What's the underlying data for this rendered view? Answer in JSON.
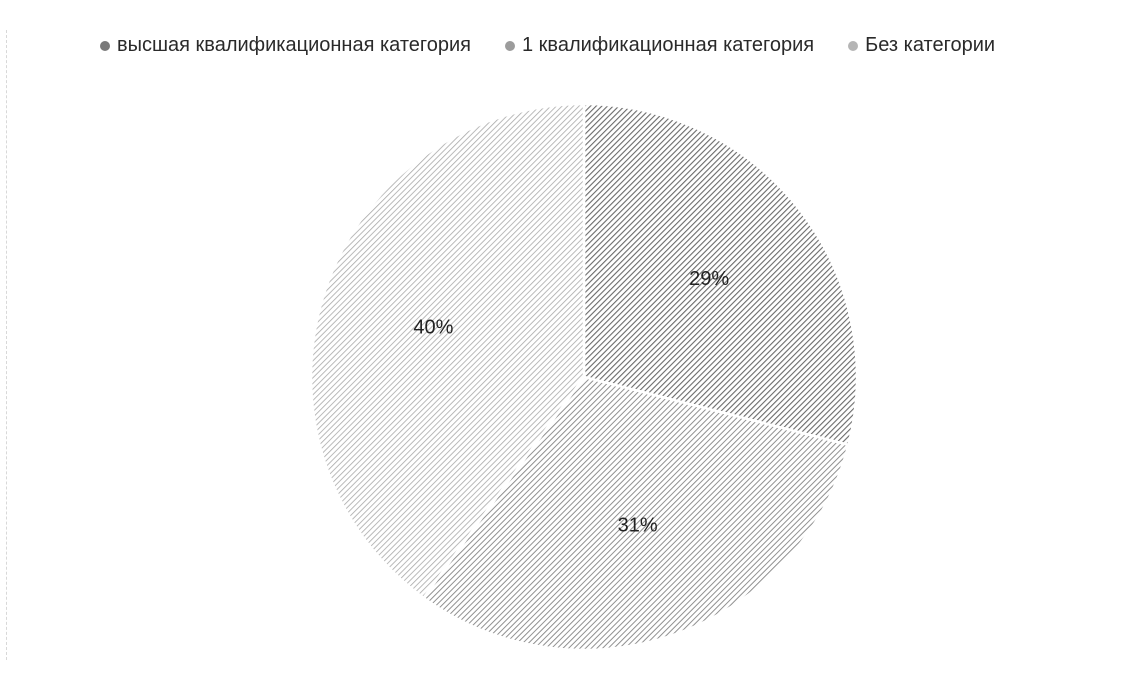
{
  "chart_data": {
    "type": "pie",
    "categories": [
      "высшая квалификационная категория",
      "1 квалификационная категория",
      "Без категории"
    ],
    "values": [
      29,
      31,
      40
    ],
    "labels": [
      "29%",
      "31%",
      "40%"
    ],
    "legend_position": "top",
    "colors": [
      "#7a7a7a",
      "#9c9c9c",
      "#b5b5b5"
    ]
  }
}
